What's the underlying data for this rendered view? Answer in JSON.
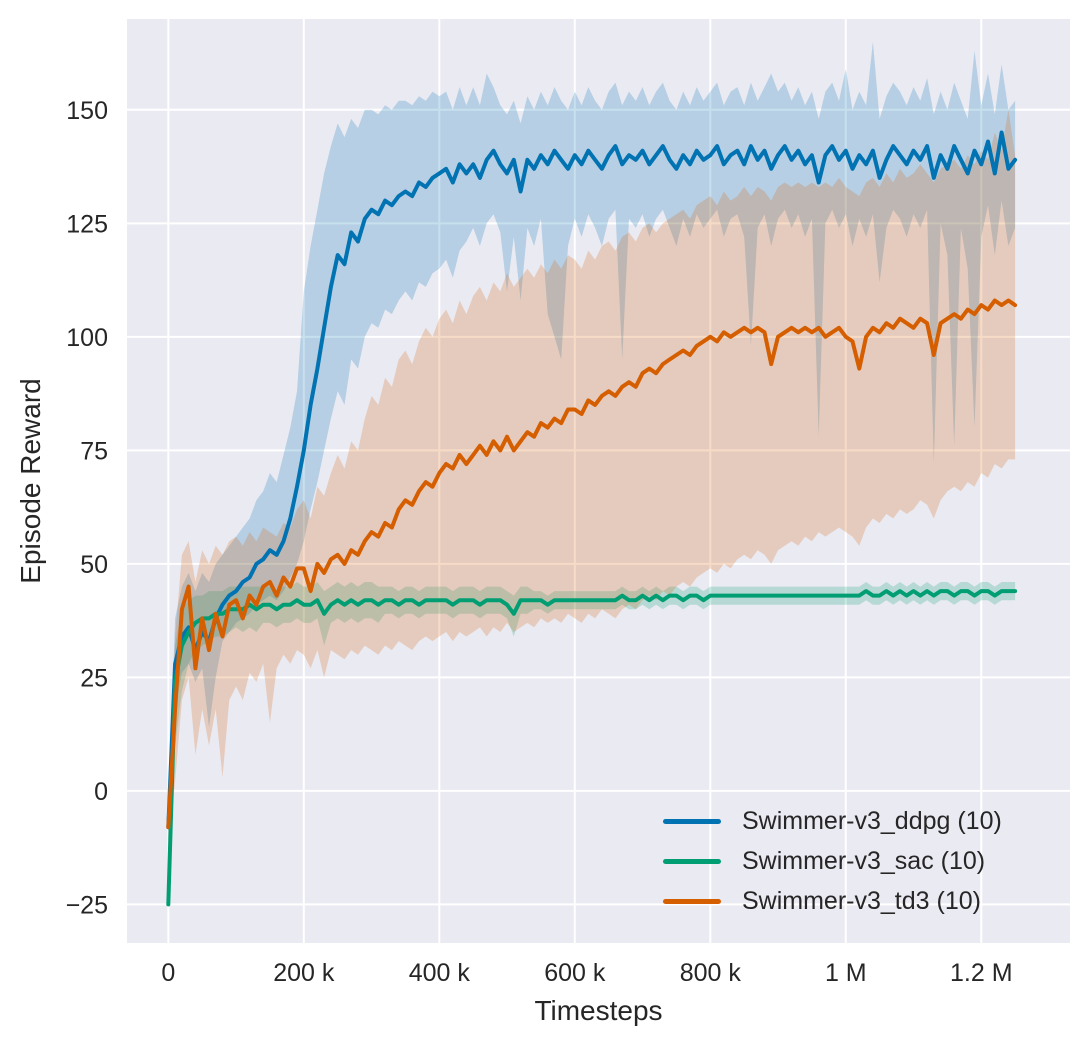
{
  "theme": {
    "figure_bg": "#ffffff",
    "plot_bg": "#eaeaf2",
    "grid_color": "#ffffff",
    "text_color": "#262626"
  },
  "chart_data": {
    "type": "line",
    "title": "",
    "xlabel": "Timesteps",
    "ylabel": "Episode Reward",
    "grid": true,
    "legend_position": "lower right",
    "legend_frame": false,
    "x_unit": "thousands of timesteps",
    "x_step_k": 10,
    "xlim_k": [
      -61,
      1331
    ],
    "ylim": [
      -33.5,
      170
    ],
    "x_tick_values_k": [
      0,
      200,
      400,
      600,
      800,
      1000,
      1200
    ],
    "x_tick_labels": [
      "0",
      "200 k",
      "400 k",
      "600 k",
      "800 k",
      "1 M",
      "1.2 M"
    ],
    "y_tick_values": [
      -25,
      0,
      25,
      50,
      75,
      100,
      125,
      150
    ],
    "y_tick_labels": [
      "−25",
      "0",
      "25",
      "50",
      "75",
      "100",
      "125",
      "150"
    ],
    "band_alpha": 0.22,
    "line_width": 4,
    "series": [
      {
        "name": "Swimmer-v3_ddpg (10)",
        "color": "#0173b2",
        "mean": [
          -8,
          28,
          34,
          36,
          31,
          35,
          33,
          38,
          41,
          43,
          44,
          46,
          47,
          50,
          51,
          53,
          52,
          55,
          60,
          67,
          75,
          85,
          93,
          102,
          111,
          118,
          116,
          123,
          121,
          126,
          128,
          127,
          130,
          129,
          131,
          132,
          131,
          134,
          133,
          135,
          136,
          137,
          134,
          138,
          136,
          138,
          135,
          139,
          141,
          138,
          136,
          139,
          132,
          139,
          137,
          140,
          138,
          141,
          139,
          137,
          140,
          138,
          141,
          139,
          137,
          140,
          142,
          138,
          140,
          139,
          141,
          138,
          140,
          142,
          139,
          137,
          140,
          138,
          141,
          139,
          140,
          142,
          138,
          140,
          141,
          138,
          142,
          139,
          141,
          137,
          140,
          142,
          139,
          141,
          138,
          140,
          134,
          140,
          142,
          139,
          141,
          137,
          140,
          138,
          141,
          135,
          139,
          142,
          140,
          138,
          141,
          139,
          142,
          135,
          140,
          137,
          142,
          139,
          136,
          141,
          138,
          143,
          136,
          145,
          137,
          139
        ],
        "band_lo": [
          -12,
          18,
          26,
          28,
          24,
          27,
          14,
          25,
          33,
          35,
          37,
          38,
          39,
          41,
          42,
          43,
          42,
          44,
          47,
          50,
          55,
          62,
          68,
          75,
          82,
          88,
          85,
          95,
          93,
          100,
          103,
          102,
          106,
          105,
          108,
          110,
          108,
          112,
          111,
          114,
          115,
          117,
          113,
          119,
          121,
          124,
          120,
          125,
          127,
          123,
          110,
          122,
          108,
          124,
          120,
          126,
          105,
          100,
          95,
          120,
          126,
          122,
          127,
          124,
          120,
          126,
          128,
          95,
          126,
          124,
          127,
          122,
          126,
          128,
          124,
          120,
          126,
          122,
          127,
          124,
          126,
          128,
          122,
          126,
          127,
          122,
          98,
          124,
          127,
          120,
          126,
          128,
          124,
          127,
          122,
          126,
          78,
          125,
          128,
          124,
          127,
          120,
          126,
          122,
          127,
          112,
          124,
          128,
          126,
          122,
          127,
          124,
          128,
          72,
          125,
          118,
          76,
          124,
          115,
          80,
          122,
          129,
          118,
          130,
          120,
          124
        ],
        "band_hi": [
          -4,
          38,
          45,
          48,
          44,
          48,
          46,
          50,
          52,
          54,
          56,
          58,
          60,
          64,
          66,
          70,
          68,
          74,
          80,
          88,
          110,
          120,
          128,
          136,
          142,
          147,
          144,
          148,
          146,
          150,
          150,
          149,
          151,
          150,
          152,
          152,
          151,
          153,
          152,
          154,
          153,
          154,
          150,
          155,
          151,
          155,
          151,
          158,
          155,
          151,
          149,
          152,
          147,
          153,
          150,
          154,
          151,
          155,
          152,
          150,
          154,
          151,
          155,
          152,
          150,
          154,
          156,
          151,
          154,
          152,
          155,
          151,
          154,
          156,
          152,
          150,
          154,
          151,
          155,
          152,
          154,
          156,
          151,
          154,
          155,
          151,
          156,
          152,
          155,
          158,
          154,
          156,
          152,
          155,
          151,
          154,
          148,
          154,
          156,
          152,
          159,
          150,
          154,
          151,
          165,
          148,
          153,
          156,
          154,
          151,
          155,
          152,
          157,
          149,
          154,
          150,
          156,
          152,
          148,
          163,
          151,
          158,
          149,
          160,
          150,
          152
        ]
      },
      {
        "name": "Swimmer-v3_sac (10)",
        "color": "#029e73",
        "mean": [
          -25,
          24,
          32,
          35,
          37,
          38,
          38,
          39,
          39,
          40,
          40,
          40,
          41,
          40,
          41,
          41,
          40,
          41,
          41,
          42,
          41,
          41,
          42,
          39,
          41,
          42,
          41,
          42,
          41,
          42,
          42,
          41,
          42,
          42,
          41,
          42,
          42,
          41,
          42,
          42,
          42,
          42,
          41,
          42,
          42,
          42,
          41,
          42,
          42,
          42,
          41,
          39,
          42,
          42,
          42,
          42,
          41,
          42,
          42,
          42,
          42,
          42,
          42,
          42,
          42,
          42,
          42,
          43,
          42,
          42,
          43,
          42,
          43,
          42,
          43,
          43,
          42,
          43,
          43,
          42,
          43,
          43,
          43,
          43,
          43,
          43,
          43,
          43,
          43,
          43,
          43,
          43,
          43,
          43,
          43,
          43,
          43,
          43,
          43,
          43,
          43,
          43,
          43,
          44,
          43,
          43,
          44,
          43,
          44,
          43,
          44,
          43,
          44,
          43,
          44,
          44,
          43,
          44,
          44,
          43,
          44,
          44,
          43,
          44,
          44,
          44
        ],
        "band_lo": [
          -26,
          10,
          22,
          28,
          31,
          32,
          33,
          34,
          34,
          35,
          36,
          35,
          36,
          35,
          37,
          37,
          36,
          37,
          37,
          38,
          37,
          37,
          38,
          32,
          37,
          38,
          37,
          38,
          37,
          38,
          38,
          37,
          39,
          39,
          38,
          39,
          39,
          38,
          39,
          39,
          39,
          39,
          38,
          39,
          39,
          39,
          38,
          39,
          39,
          39,
          38,
          34,
          39,
          39,
          40,
          40,
          39,
          40,
          40,
          40,
          40,
          40,
          40,
          40,
          40,
          40,
          40,
          41,
          40,
          40,
          41,
          40,
          41,
          40,
          41,
          41,
          40,
          41,
          41,
          40,
          41,
          41,
          41,
          41,
          41,
          41,
          41,
          41,
          41,
          41,
          41,
          41,
          41,
          41,
          41,
          41,
          41,
          41,
          41,
          41,
          41,
          41,
          41,
          42,
          41,
          41,
          42,
          41,
          42,
          41,
          42,
          41,
          42,
          41,
          42,
          42,
          41,
          42,
          42,
          41,
          42,
          42,
          41,
          42,
          42,
          42
        ],
        "band_hi": [
          -24,
          32,
          40,
          42,
          43,
          43,
          44,
          44,
          44,
          45,
          45,
          45,
          45,
          45,
          45,
          45,
          44,
          45,
          45,
          46,
          45,
          45,
          46,
          44,
          45,
          46,
          45,
          46,
          45,
          46,
          46,
          45,
          45,
          45,
          44,
          45,
          45,
          44,
          45,
          45,
          45,
          45,
          44,
          45,
          45,
          45,
          44,
          45,
          45,
          45,
          44,
          43,
          45,
          45,
          44,
          44,
          43,
          44,
          44,
          44,
          44,
          44,
          44,
          44,
          44,
          44,
          44,
          45,
          44,
          44,
          45,
          44,
          45,
          44,
          45,
          45,
          44,
          45,
          45,
          44,
          45,
          45,
          45,
          45,
          45,
          45,
          45,
          45,
          45,
          45,
          45,
          45,
          45,
          45,
          45,
          45,
          45,
          45,
          45,
          45,
          45,
          45,
          45,
          46,
          45,
          45,
          46,
          45,
          46,
          45,
          46,
          45,
          46,
          45,
          46,
          46,
          45,
          46,
          46,
          45,
          46,
          46,
          45,
          46,
          46,
          46
        ]
      },
      {
        "name": "Swimmer-v3_td3 (10)",
        "color": "#d55e00",
        "mean": [
          -8,
          18,
          40,
          45,
          27,
          38,
          31,
          39,
          34,
          41,
          42,
          38,
          43,
          41,
          45,
          46,
          43,
          47,
          45,
          49,
          49,
          44,
          50,
          48,
          51,
          52,
          50,
          53,
          52,
          55,
          57,
          56,
          59,
          58,
          62,
          64,
          63,
          66,
          68,
          67,
          70,
          72,
          71,
          74,
          72,
          74,
          76,
          74,
          77,
          75,
          78,
          75,
          77,
          79,
          78,
          81,
          80,
          82,
          81,
          84,
          84,
          83,
          86,
          85,
          87,
          88,
          87,
          89,
          90,
          89,
          92,
          93,
          92,
          94,
          95,
          96,
          97,
          96,
          98,
          99,
          100,
          99,
          101,
          100,
          101,
          102,
          101,
          102,
          101,
          94,
          100,
          101,
          102,
          101,
          102,
          101,
          102,
          100,
          101,
          102,
          100,
          99,
          93,
          100,
          102,
          101,
          103,
          102,
          104,
          103,
          102,
          104,
          103,
          96,
          103,
          104,
          105,
          104,
          106,
          105,
          107,
          106,
          108,
          107,
          108,
          107
        ],
        "band_lo": [
          -12,
          2,
          20,
          25,
          8,
          18,
          10,
          18,
          3,
          20,
          23,
          20,
          26,
          24,
          28,
          15,
          27,
          30,
          28,
          31,
          30,
          27,
          31,
          25,
          31,
          30,
          29,
          31,
          30,
          32,
          31,
          30,
          32,
          31,
          33,
          32,
          31,
          33,
          34,
          33,
          34,
          35,
          33,
          35,
          34,
          35,
          36,
          34,
          36,
          35,
          37,
          35,
          36,
          37,
          36,
          38,
          37,
          38,
          37,
          39,
          38,
          37,
          39,
          38,
          40,
          39,
          38,
          40,
          41,
          40,
          42,
          43,
          42,
          44,
          43,
          45,
          46,
          45,
          47,
          48,
          49,
          48,
          50,
          49,
          51,
          52,
          51,
          53,
          52,
          50,
          53,
          54,
          55,
          54,
          56,
          55,
          57,
          56,
          57,
          58,
          57,
          56,
          54,
          58,
          60,
          59,
          61,
          60,
          62,
          61,
          62,
          64,
          63,
          60,
          64,
          66,
          67,
          66,
          68,
          67,
          70,
          69,
          72,
          71,
          73,
          73
        ],
        "band_hi": [
          -4,
          34,
          52,
          55,
          46,
          53,
          50,
          54,
          52,
          55,
          56,
          54,
          57,
          55,
          58,
          57,
          56,
          59,
          58,
          62,
          64,
          60,
          67,
          65,
          70,
          74,
          71,
          77,
          75,
          82,
          87,
          85,
          91,
          89,
          95,
          97,
          94,
          99,
          102,
          100,
          104,
          106,
          103,
          108,
          105,
          109,
          111,
          108,
          112,
          110,
          114,
          111,
          113,
          115,
          113,
          116,
          114,
          117,
          115,
          118,
          117,
          115,
          119,
          117,
          120,
          121,
          119,
          122,
          123,
          121,
          124,
          125,
          123,
          125,
          126,
          127,
          128,
          126,
          129,
          130,
          131,
          129,
          132,
          130,
          131,
          133,
          131,
          133,
          132,
          130,
          133,
          134,
          133,
          134,
          133,
          134,
          133,
          134,
          133,
          135,
          133,
          132,
          131,
          134,
          135,
          133,
          136,
          134,
          137,
          135,
          136,
          138,
          136,
          134,
          137,
          138,
          139,
          137,
          140,
          138,
          141,
          139,
          145,
          141,
          150,
          140
        ]
      }
    ]
  }
}
